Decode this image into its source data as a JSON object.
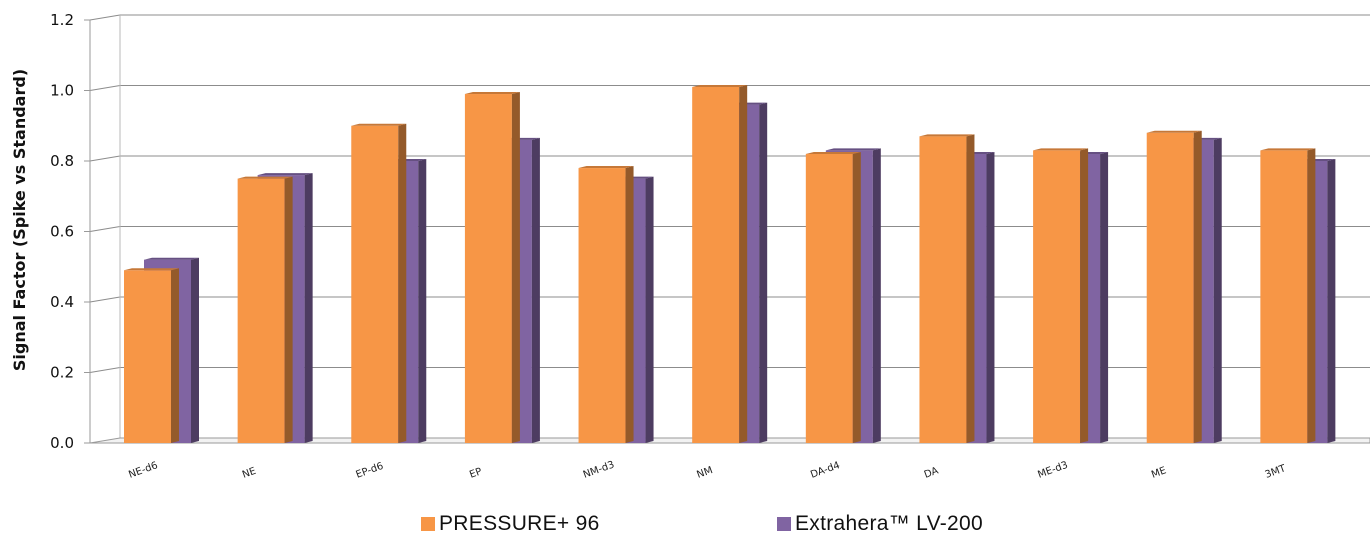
{
  "chart_data": {
    "type": "bar",
    "ylabel": "Signal Factor (Spike vs Standard)",
    "xlabel": "",
    "ylim": [
      0.0,
      1.2
    ],
    "yticks": [
      "0.0",
      "0.2",
      "0.4",
      "0.6",
      "0.8",
      "1.0",
      "1.2"
    ],
    "grid": true,
    "legend_position": "bottom",
    "categories": [
      "NE-d6",
      "NE",
      "EP-d6",
      "EP",
      "NM-d3",
      "NM",
      "DA-d4",
      "DA",
      "ME-d3",
      "ME",
      "3MT"
    ],
    "series": [
      {
        "name": "PRESSURE+ 96",
        "color": "#F79646",
        "values": [
          0.49,
          0.75,
          0.9,
          0.99,
          0.78,
          1.01,
          0.82,
          0.87,
          0.83,
          0.88,
          0.83
        ]
      },
      {
        "name": "Extrahera™ LV-200",
        "color": "#8064A2",
        "values": [
          0.52,
          0.76,
          0.8,
          0.86,
          0.75,
          0.96,
          0.83,
          0.82,
          0.82,
          0.86,
          0.8
        ]
      }
    ]
  }
}
